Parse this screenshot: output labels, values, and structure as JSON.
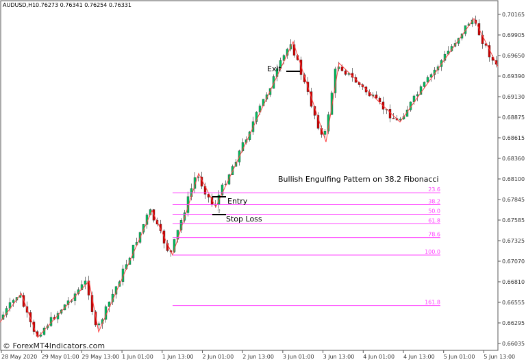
{
  "header": {
    "symbol": "AUDUSD,H1",
    "ohlc": "0.76273 0.76341 0.76254 0.76331"
  },
  "watermark": "© ForexMT4Indicators.com",
  "annotations": {
    "title": "Bullish Engulfing Pattern on 38.2 Fibonacci",
    "entry": "Entry",
    "stop_loss": "Stop Loss",
    "exit": "Exit"
  },
  "colors": {
    "bull": "#00c060",
    "bear": "#d00000",
    "zigzag": "#ff4040",
    "fib": "#ff40ff"
  },
  "chart_data": {
    "type": "candlestick",
    "y_ticks": [
      "0.70165",
      "0.69905",
      "0.69650",
      "0.69390",
      "0.69130",
      "0.68875",
      "0.68615",
      "0.68360",
      "0.68100",
      "0.67845",
      "0.67585",
      "0.67325",
      "0.67070",
      "0.66810",
      "0.66555",
      "0.66295",
      "0.66035"
    ],
    "x_ticks": [
      "28 May 2020",
      "29 May 01:00",
      "29 May 13:00",
      "1 Jun 01:00",
      "1 Jun 13:00",
      "2 Jun 01:00",
      "2 Jun 13:00",
      "3 Jun 01:00",
      "3 Jun 13:00",
      "4 Jun 01:00",
      "4 Jun 13:00",
      "5 Jun 01:00",
      "5 Jun 13:00"
    ],
    "ylim": [
      0.6597,
      0.7035
    ],
    "zigzag_pivots": [
      0.66304,
      0.66665,
      0.66114,
      0.6682,
      0.66183,
      0.67705,
      0.67146,
      0.6817,
      0.67748,
      0.69821,
      0.68565,
      0.69554,
      0.68815,
      0.70113,
      0.69511
    ],
    "fibonacci": {
      "high": 0.6817,
      "low": 0.67146,
      "levels": [
        "23.6",
        "38.2",
        "50.0",
        "61.8",
        "78.6",
        "100.0",
        "161.8"
      ]
    },
    "entry_price": 0.67862,
    "stop_loss_price": 0.67636,
    "exit_price": 0.69454
  }
}
